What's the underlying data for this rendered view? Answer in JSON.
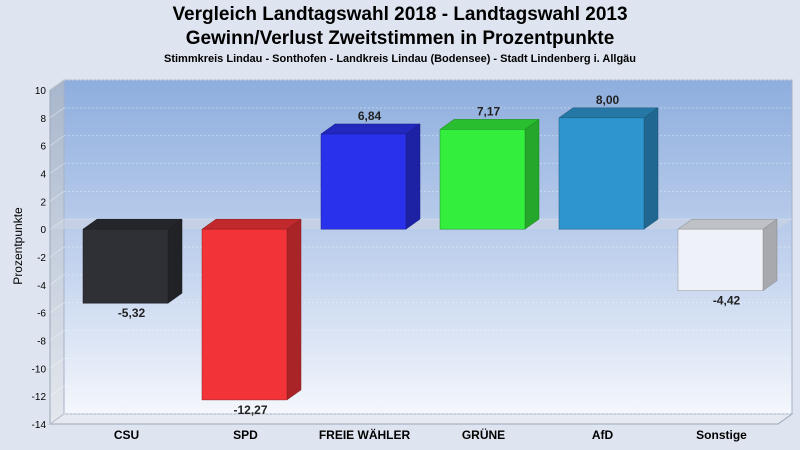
{
  "header": {
    "title_line1": "Vergleich Landtagswahl 2018 - Landtagswahl 2013",
    "title_line2": "Gewinn/Verlust Zweitstimmen in Prozentpunkte",
    "subtitle": "Stimmkreis Lindau - Sonthofen - Landkreis Lindau (Bodensee) - Stadt Lindenberg i. Allgäu"
  },
  "chart_data": {
    "type": "bar",
    "title": "Vergleich Landtagswahl 2018 - Landtagswahl 2013",
    "subtitle": "Gewinn/Verlust Zweitstimmen in Prozentpunkte",
    "ylabel": "Prozentpunkte",
    "xlabel": "",
    "ylim": [
      -14,
      10
    ],
    "yticks": [
      10,
      8,
      6,
      4,
      2,
      0,
      -2,
      -4,
      -6,
      -8,
      -10,
      -12,
      -14
    ],
    "grid": true,
    "categories": [
      "CSU",
      "SPD",
      "FREIE WÄHLER",
      "GRÜNE",
      "AfD",
      "Sonstige"
    ],
    "values": [
      -5.32,
      -12.27,
      6.84,
      7.17,
      8.0,
      -4.42
    ],
    "value_labels": [
      "-5,32",
      "-12,27",
      "6,84",
      "7,17",
      "8,00",
      "-4,42"
    ],
    "colors": [
      "#2e3036",
      "#f23338",
      "#2a31ec",
      "#33ee3c",
      "#2e95cf",
      "#eef2f8"
    ]
  }
}
